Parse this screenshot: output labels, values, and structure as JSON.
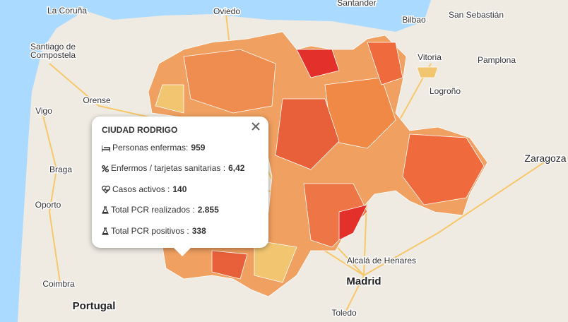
{
  "map": {
    "places": [
      {
        "label": "La Coruña"
      },
      {
        "label": "Oviedo"
      },
      {
        "label": "Santander"
      },
      {
        "label": "Bilbao"
      },
      {
        "label": "San Sebastián"
      },
      {
        "label": "Santiago de"
      },
      {
        "label": "Compostela"
      },
      {
        "label": "Vitoria"
      },
      {
        "label": "Pamplona"
      },
      {
        "label": "Logroño"
      },
      {
        "label": "Orense"
      },
      {
        "label": "Vigo"
      },
      {
        "label": "Zaragoza"
      },
      {
        "label": "Braga"
      },
      {
        "label": "Oporto"
      },
      {
        "label": "Alcalá de Henares"
      },
      {
        "label": "Madrid"
      },
      {
        "label": "Coimbra"
      },
      {
        "label": "Portugal"
      },
      {
        "label": "Toledo"
      }
    ]
  },
  "popup": {
    "title": "CIUDAD RODRIGO",
    "rows": [
      {
        "label": "Personas enfermas:",
        "value": "959"
      },
      {
        "label": "Enfermos / tarjetas sanitarias :",
        "value": "6,42"
      },
      {
        "label": "Casos activos :",
        "value": "140"
      },
      {
        "label": "Total PCR realizados :",
        "value": "2.855"
      },
      {
        "label": "Total PCR positivos :",
        "value": "338"
      }
    ]
  }
}
